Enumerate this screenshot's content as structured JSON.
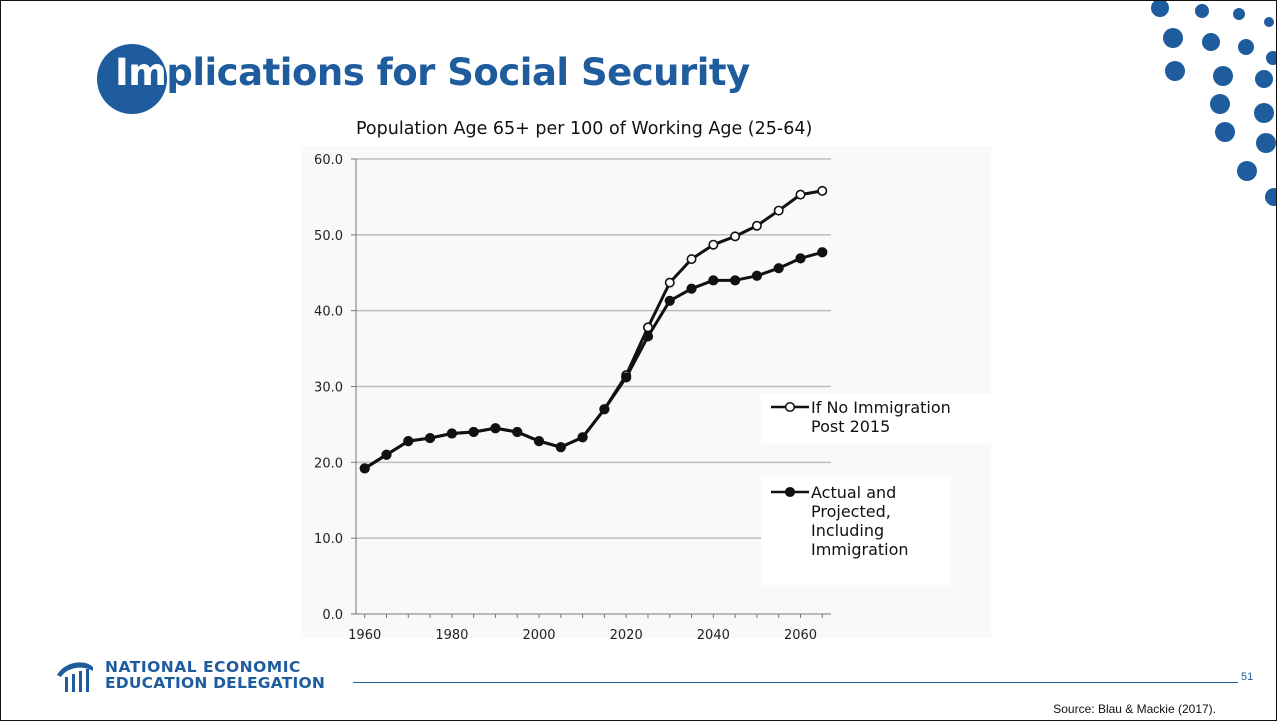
{
  "slide": {
    "title_first": "Im",
    "title_rest": "plications for Social Security",
    "page_number": "51",
    "source": "Source: Blau & Mackie (2017).",
    "org_line1": "NATIONAL ECONOMIC",
    "org_line2": "EDUCATION DELEGATION",
    "accent_color": "#1f5c9e"
  },
  "chart_data": {
    "type": "line",
    "title": "Population Age 65+ per 100 of Working Age (25-64)",
    "xlabel": "",
    "ylabel": "",
    "ylim": [
      0,
      60
    ],
    "y_ticks": [
      "0.0",
      "10.0",
      "20.0",
      "30.0",
      "40.0",
      "50.0",
      "60.0"
    ],
    "x_tick_labels": [
      "1960",
      "1980",
      "2000",
      "2020",
      "2040",
      "2060"
    ],
    "x_tick_values": [
      1960,
      1980,
      2000,
      2020,
      2040,
      2060
    ],
    "xlim": [
      1958,
      2067
    ],
    "grid": "horizontal",
    "legend_position": "right",
    "series": [
      {
        "name": "If No Immigration Post 2015",
        "legend_lines": [
          "If No Immigration",
          "Post 2015"
        ],
        "marker": "open-circle",
        "x": [
          1960,
          1965,
          1970,
          1975,
          1980,
          1985,
          1990,
          1995,
          2000,
          2005,
          2010,
          2015,
          2020,
          2025,
          2030,
          2035,
          2040,
          2045,
          2050,
          2055,
          2060,
          2065
        ],
        "values": [
          19.2,
          21.0,
          22.8,
          23.2,
          23.8,
          24.0,
          24.5,
          24.0,
          22.8,
          22.0,
          23.3,
          27.0,
          31.5,
          37.8,
          43.7,
          46.8,
          48.7,
          49.8,
          51.2,
          53.2,
          55.3,
          55.8
        ]
      },
      {
        "name": "Actual and Projected, Including Immigration",
        "legend_lines": [
          "Actual and",
          "Projected,",
          "Including",
          "Immigration"
        ],
        "marker": "filled-circle",
        "x": [
          1960,
          1965,
          1970,
          1975,
          1980,
          1985,
          1990,
          1995,
          2000,
          2005,
          2010,
          2015,
          2020,
          2025,
          2030,
          2035,
          2040,
          2045,
          2050,
          2055,
          2060,
          2065
        ],
        "values": [
          19.2,
          21.0,
          22.8,
          23.2,
          23.8,
          24.0,
          24.5,
          24.0,
          22.8,
          22.0,
          23.3,
          27.0,
          31.2,
          36.6,
          41.3,
          42.9,
          44.0,
          44.0,
          44.6,
          45.6,
          46.9,
          47.7
        ]
      }
    ]
  }
}
